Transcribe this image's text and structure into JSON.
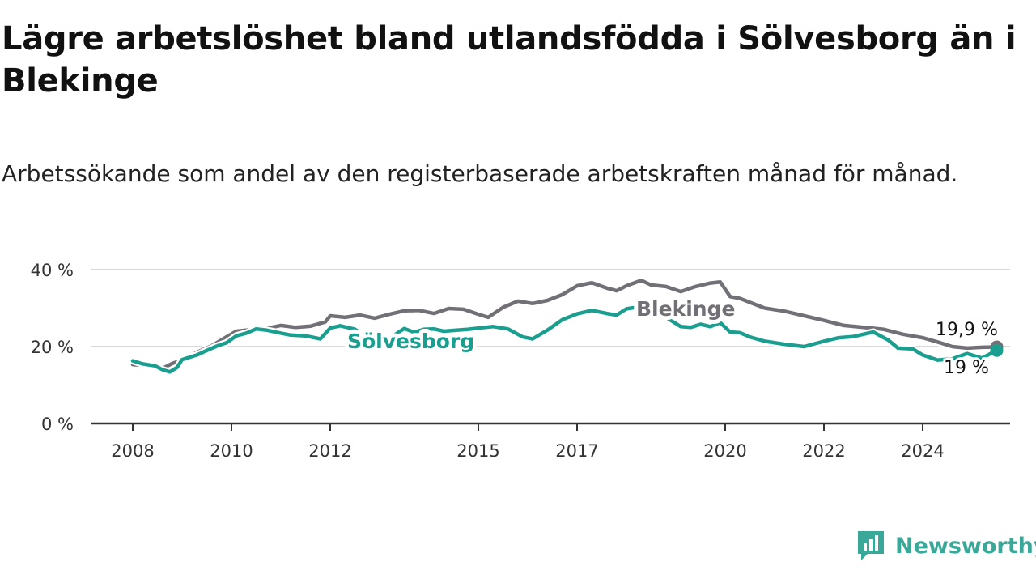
{
  "title": "Lägre arbetslöshet bland utlandsfödda i Sölvesborg än i Blekinge",
  "subtitle": "Arbetssökande som andel av den registerbaserade arbetskraften månad för månad.",
  "brand": {
    "name": "Newsworthy",
    "icon": "newsworthy-logo-icon",
    "color": "#3aa898"
  },
  "chart_data": {
    "type": "line",
    "ylim": [
      0,
      40
    ],
    "xlim": [
      2008,
      2025.8
    ],
    "grid": true,
    "y_ticks": [
      {
        "value": 0,
        "label": "0 %"
      },
      {
        "value": 20,
        "label": "20 %"
      },
      {
        "value": 40,
        "label": "40 %"
      }
    ],
    "x_ticks": [
      {
        "value": 2008,
        "label": "2008"
      },
      {
        "value": 2010,
        "label": "2010"
      },
      {
        "value": 2012,
        "label": "2012"
      },
      {
        "value": 2015,
        "label": "2015"
      },
      {
        "value": 2017,
        "label": "2017"
      },
      {
        "value": 2020,
        "label": "2020"
      },
      {
        "value": 2022,
        "label": "2022"
      },
      {
        "value": 2024,
        "label": "2024"
      }
    ],
    "series": [
      {
        "name": "Blekinge",
        "color": "#727076",
        "end_label": "19,9 %",
        "points": [
          [
            2008.0,
            15.3
          ],
          [
            2008.4,
            15.0
          ],
          [
            2008.6,
            14.3
          ],
          [
            2008.8,
            15.6
          ],
          [
            2009.0,
            16.5
          ],
          [
            2009.3,
            18.5
          ],
          [
            2009.6,
            20.2
          ],
          [
            2009.9,
            22.5
          ],
          [
            2010.1,
            24.0
          ],
          [
            2010.4,
            24.4
          ],
          [
            2010.7,
            24.7
          ],
          [
            2011.0,
            25.5
          ],
          [
            2011.3,
            25.0
          ],
          [
            2011.6,
            25.3
          ],
          [
            2011.9,
            26.4
          ],
          [
            2012.0,
            28.0
          ],
          [
            2012.3,
            27.6
          ],
          [
            2012.6,
            28.2
          ],
          [
            2012.9,
            27.4
          ],
          [
            2013.2,
            28.4
          ],
          [
            2013.5,
            29.3
          ],
          [
            2013.8,
            29.4
          ],
          [
            2014.1,
            28.6
          ],
          [
            2014.4,
            29.9
          ],
          [
            2014.7,
            29.7
          ],
          [
            2015.0,
            28.4
          ],
          [
            2015.2,
            27.6
          ],
          [
            2015.5,
            30.2
          ],
          [
            2015.8,
            31.8
          ],
          [
            2016.1,
            31.2
          ],
          [
            2016.4,
            32.0
          ],
          [
            2016.7,
            33.5
          ],
          [
            2017.0,
            35.8
          ],
          [
            2017.3,
            36.6
          ],
          [
            2017.6,
            35.2
          ],
          [
            2017.8,
            34.5
          ],
          [
            2018.0,
            35.8
          ],
          [
            2018.3,
            37.2
          ],
          [
            2018.5,
            36.0
          ],
          [
            2018.8,
            35.6
          ],
          [
            2019.1,
            34.3
          ],
          [
            2019.4,
            35.6
          ],
          [
            2019.7,
            36.5
          ],
          [
            2019.9,
            36.8
          ],
          [
            2020.1,
            33.0
          ],
          [
            2020.3,
            32.5
          ],
          [
            2020.5,
            31.5
          ],
          [
            2020.8,
            30.0
          ],
          [
            2021.2,
            29.2
          ],
          [
            2021.6,
            28.0
          ],
          [
            2022.0,
            26.8
          ],
          [
            2022.4,
            25.5
          ],
          [
            2022.8,
            25.0
          ],
          [
            2023.2,
            24.5
          ],
          [
            2023.6,
            23.2
          ],
          [
            2024.0,
            22.3
          ],
          [
            2024.3,
            21.2
          ],
          [
            2024.6,
            20.0
          ],
          [
            2024.9,
            19.6
          ],
          [
            2025.2,
            19.8
          ],
          [
            2025.5,
            19.9
          ]
        ]
      },
      {
        "name": "Sölvesborg",
        "color": "#1a9e8f",
        "end_label": "19 %",
        "points": [
          [
            2008.0,
            16.3
          ],
          [
            2008.2,
            15.5
          ],
          [
            2008.45,
            15.0
          ],
          [
            2008.6,
            14.0
          ],
          [
            2008.75,
            13.4
          ],
          [
            2008.9,
            14.6
          ],
          [
            2009.0,
            16.6
          ],
          [
            2009.3,
            17.8
          ],
          [
            2009.5,
            19.0
          ],
          [
            2009.7,
            20.1
          ],
          [
            2009.9,
            21.0
          ],
          [
            2010.1,
            22.8
          ],
          [
            2010.3,
            23.5
          ],
          [
            2010.5,
            24.6
          ],
          [
            2010.7,
            24.3
          ],
          [
            2011.0,
            23.5
          ],
          [
            2011.2,
            23.0
          ],
          [
            2011.5,
            22.8
          ],
          [
            2011.8,
            22.0
          ],
          [
            2012.0,
            24.8
          ],
          [
            2012.2,
            25.4
          ],
          [
            2012.5,
            24.5
          ],
          [
            2012.8,
            22.0
          ],
          [
            2013.0,
            22.8
          ],
          [
            2013.2,
            22.2
          ],
          [
            2013.5,
            24.7
          ],
          [
            2013.7,
            23.7
          ],
          [
            2013.9,
            24.5
          ],
          [
            2014.1,
            24.6
          ],
          [
            2014.3,
            24.0
          ],
          [
            2014.5,
            24.2
          ],
          [
            2014.8,
            24.5
          ],
          [
            2015.0,
            24.8
          ],
          [
            2015.3,
            25.2
          ],
          [
            2015.6,
            24.6
          ],
          [
            2015.9,
            22.5
          ],
          [
            2016.1,
            22.0
          ],
          [
            2016.4,
            24.3
          ],
          [
            2016.7,
            27.0
          ],
          [
            2017.0,
            28.5
          ],
          [
            2017.3,
            29.4
          ],
          [
            2017.6,
            28.6
          ],
          [
            2017.8,
            28.2
          ],
          [
            2018.0,
            29.8
          ],
          [
            2018.3,
            30.4
          ],
          [
            2018.5,
            28.2
          ],
          [
            2018.8,
            27.6
          ],
          [
            2019.1,
            25.2
          ],
          [
            2019.3,
            25.0
          ],
          [
            2019.5,
            25.8
          ],
          [
            2019.7,
            25.2
          ],
          [
            2019.9,
            26.2
          ],
          [
            2020.1,
            23.8
          ],
          [
            2020.3,
            23.6
          ],
          [
            2020.5,
            22.5
          ],
          [
            2020.8,
            21.4
          ],
          [
            2021.2,
            20.6
          ],
          [
            2021.6,
            20.0
          ],
          [
            2022.0,
            21.4
          ],
          [
            2022.3,
            22.3
          ],
          [
            2022.6,
            22.6
          ],
          [
            2023.0,
            23.8
          ],
          [
            2023.3,
            21.7
          ],
          [
            2023.5,
            19.6
          ],
          [
            2023.8,
            19.4
          ],
          [
            2024.0,
            17.8
          ],
          [
            2024.3,
            16.5
          ],
          [
            2024.6,
            16.8
          ],
          [
            2024.9,
            18.2
          ],
          [
            2025.2,
            17.0
          ],
          [
            2025.5,
            19.0
          ]
        ]
      }
    ]
  }
}
